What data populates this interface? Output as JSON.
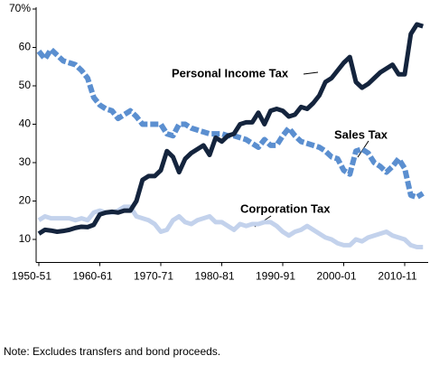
{
  "chart_data": {
    "type": "line",
    "categories": [
      "1950-51",
      null,
      null,
      null,
      null,
      null,
      null,
      null,
      null,
      null,
      "1960-61",
      null,
      null,
      null,
      null,
      null,
      null,
      null,
      null,
      null,
      "1970-71",
      null,
      null,
      null,
      null,
      null,
      null,
      null,
      null,
      null,
      "1980-81",
      null,
      null,
      null,
      null,
      null,
      null,
      null,
      null,
      null,
      "1990-91",
      null,
      null,
      null,
      null,
      null,
      null,
      null,
      null,
      null,
      "2000-01",
      null,
      null,
      null,
      null,
      null,
      null,
      null,
      null,
      null,
      "2010-11",
      null,
      null,
      null
    ],
    "series": [
      {
        "name": "Personal Income Tax",
        "color": "#14243d",
        "dashed": false,
        "values": [
          11.5,
          12.5,
          12.3,
          12,
          12.2,
          12.5,
          13,
          13.3,
          13.2,
          13.8,
          16.5,
          17,
          17.2,
          17,
          17.5,
          17.5,
          20,
          25.5,
          26.5,
          26.5,
          28,
          33,
          31.5,
          27.5,
          31,
          32.5,
          33.5,
          34.5,
          32,
          36.5,
          35.5,
          37,
          37.5,
          40,
          40.5,
          40.5,
          43,
          40,
          43.5,
          44,
          43.5,
          42,
          42.5,
          44.5,
          44,
          45.5,
          47.5,
          51,
          52,
          54,
          56,
          57.5,
          51,
          49.5,
          50.5,
          52,
          53.5,
          54.5,
          55.5,
          53,
          53,
          63.5,
          66,
          65.5
        ]
      },
      {
        "name": "Sales Tax",
        "color": "#5b8fd0",
        "dashed": true,
        "values": [
          59,
          57,
          59.5,
          58,
          56.5,
          56,
          55.5,
          54,
          52,
          47,
          45,
          44,
          43.5,
          41.5,
          42.5,
          43.5,
          42,
          40,
          40,
          40,
          40,
          37.5,
          37,
          40,
          40,
          39,
          38.5,
          38,
          37.5,
          37.5,
          37.5,
          37,
          37,
          36.5,
          36,
          35,
          34,
          36,
          34.5,
          34.5,
          37,
          39,
          37,
          35.5,
          35,
          34.5,
          34,
          33,
          31.5,
          31,
          28,
          27,
          33,
          33.5,
          32.5,
          30,
          29,
          27.5,
          29,
          31,
          28.5,
          21.5,
          21,
          22
        ]
      },
      {
        "name": "Corporation Tax",
        "color": "#c3d2ec",
        "dashed": false,
        "values": [
          15,
          16,
          15.5,
          15.5,
          15.5,
          15.5,
          15,
          15.5,
          15,
          17,
          17.5,
          17,
          17,
          17.5,
          18.5,
          18.5,
          16,
          15.5,
          15,
          14,
          12,
          12.5,
          15,
          16,
          14.5,
          14,
          15,
          15.5,
          16,
          14.5,
          14.5,
          13.5,
          12.5,
          14,
          13.5,
          14,
          14,
          14.5,
          14.5,
          13.5,
          12,
          11,
          12,
          12.5,
          13.5,
          12.5,
          11.5,
          10.5,
          10,
          9,
          8.5,
          8.5,
          10,
          9.5,
          10.5,
          11,
          11.5,
          12,
          11,
          10.5,
          10,
          8.5,
          8,
          8
        ]
      }
    ],
    "ylim": [
      4,
      70
    ],
    "yticks": [
      10,
      20,
      30,
      40,
      50,
      60,
      {
        "value": 70,
        "label": "70%"
      }
    ],
    "grid": false,
    "note": "Note: Excludes transfers and bond proceeds."
  }
}
